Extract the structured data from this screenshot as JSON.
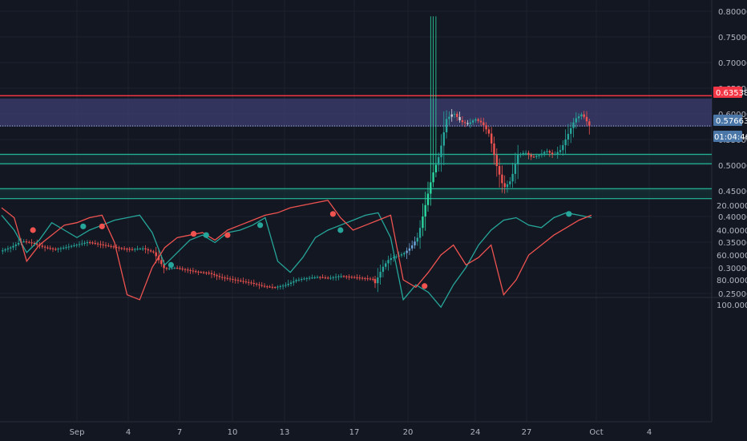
{
  "colors": {
    "background": "#131722",
    "axis_text": "#b2b5be",
    "grid": "#1e2230",
    "up": "#26a69a",
    "down": "#ef5350",
    "up_bright": "#2bd9a0",
    "blue_candle": "#6ea4d8",
    "resistance": "#f23645",
    "support": "#26d9b4",
    "zone": "#3d3f73",
    "stoch_k": "#26a69a",
    "stoch_d": "#ef5350",
    "price_tag": "#4a77a8",
    "resistance_tag": "#f23645"
  },
  "labels": {
    "current_price": "0.57663",
    "countdown": "01:04:46",
    "resistance_price": "0.63538"
  },
  "chart_data": [
    {
      "type": "candlestick",
      "title": "",
      "y_ticks": [
        "0.80000",
        "0.75000",
        "0.70000",
        "0.65000",
        "0.60000",
        "0.55000",
        "0.50000",
        "0.45000",
        "0.40000",
        "0.35000",
        "0.30000",
        "0.25000"
      ],
      "ylim": [
        0.23,
        0.815
      ],
      "x_ticks": [
        "Sep",
        "4",
        "7",
        "10",
        "13",
        "17",
        "20",
        "24",
        "27",
        "Oct",
        "4"
      ],
      "current_price": 0.57663,
      "resistance_line": 0.63538,
      "resistance_zone": [
        0.575,
        0.63
      ],
      "support_lines": [
        0.521,
        0.503,
        0.454,
        0.435
      ],
      "close_path": [
        [
          0.332,
          0.34,
          0.352,
          0.348,
          0.34,
          0.336,
          0.34,
          0.345,
          0.35,
          0.346,
          0.342,
          0.338,
          0.336,
          0.338,
          0.33,
          0.298,
          0.3,
          0.296,
          0.292,
          0.29,
          0.282,
          0.278,
          0.274,
          0.27,
          0.264,
          0.262,
          0.266,
          0.276,
          0.28,
          0.282,
          0.28,
          0.284,
          0.282,
          0.28,
          0.278
        ],
        [
          0.27,
          0.3,
          0.318,
          0.322,
          0.328,
          0.34,
          0.36,
          0.42,
          0.48,
          0.52,
          0.59,
          0.602,
          0.585,
          0.58,
          0.59,
          0.582,
          0.56,
          0.5,
          0.455,
          0.47,
          0.52,
          0.525,
          0.515,
          0.52,
          0.528,
          0.52,
          0.53,
          0.56,
          0.59,
          0.6,
          0.577
        ]
      ],
      "close_path_split_day": 17
    },
    {
      "type": "line",
      "title": "",
      "y_ticks": [
        "100.0000",
        "80.0000",
        "60.0000",
        "40.0000",
        "20.0000"
      ],
      "ylim": [
        12,
        102
      ],
      "band": [
        30,
        70
      ],
      "series": [
        {
          "values": [
            28,
            40,
            58,
            48,
            34,
            40,
            46,
            40,
            36,
            32,
            30,
            28,
            42,
            68,
            58,
            48,
            44,
            50,
            42,
            40,
            36,
            30,
            65,
            74,
            62,
            46,
            40,
            36,
            32,
            28,
            26,
            46,
            96,
            84,
            90,
            102,
            84,
            70,
            52,
            40,
            32,
            30,
            36,
            38,
            30,
            26,
            28,
            30
          ]
        },
        {
          "values": [
            22,
            30,
            65,
            52,
            44,
            36,
            34,
            30,
            28,
            50,
            92,
            96,
            70,
            54,
            46,
            44,
            42,
            48,
            40,
            36,
            32,
            28,
            26,
            22,
            20,
            18,
            16,
            30,
            40,
            36,
            32,
            28,
            80,
            86,
            74,
            60,
            52,
            68,
            62,
            52,
            92,
            80,
            60,
            52,
            44,
            38,
            32,
            28
          ]
        }
      ],
      "cross_points": [
        [
          2.5,
          40
        ],
        [
          6.5,
          37
        ],
        [
          8,
          37
        ],
        [
          13.5,
          68
        ],
        [
          15.3,
          43
        ],
        [
          16.3,
          44
        ],
        [
          18,
          44
        ],
        [
          20.6,
          36
        ],
        [
          26.4,
          27
        ],
        [
          27,
          40
        ],
        [
          33.7,
          85
        ],
        [
          45.2,
          27
        ]
      ]
    }
  ]
}
